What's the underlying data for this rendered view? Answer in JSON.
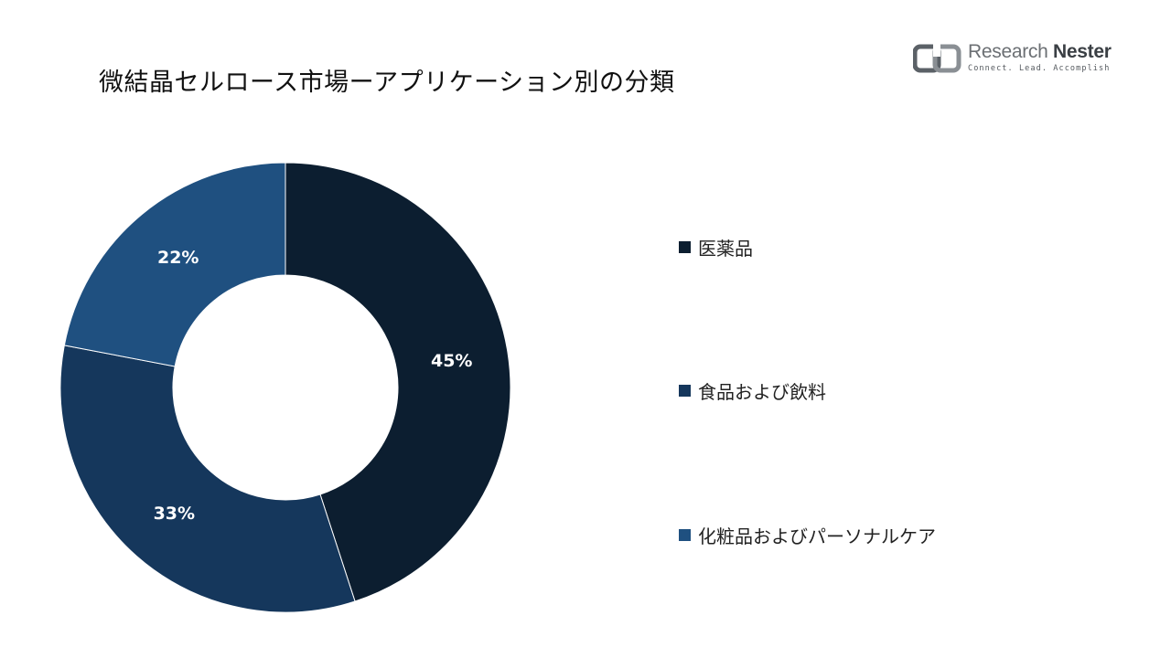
{
  "title": "微結晶セルロース市場ーアプリケーション別の分類",
  "logo": {
    "name_light": "Research",
    "name_bold": "Nester",
    "tagline": "Connect. Lead. Accomplish"
  },
  "colors": {
    "series": [
      "#0c1e30",
      "#15375c",
      "#1f5080"
    ],
    "label_text": "#ffffff",
    "title_text": "#111111"
  },
  "chart_data": {
    "type": "pie",
    "variant": "donut",
    "title": "微結晶セルロース市場ーアプリケーション別の分類",
    "categories": [
      "医薬品",
      "食品および飲料",
      "化粧品およびパーソナルケア"
    ],
    "values": [
      45,
      33,
      22
    ],
    "unit": "%",
    "data_labels": [
      "45%",
      "33%",
      "22%"
    ],
    "legend_position": "right"
  }
}
